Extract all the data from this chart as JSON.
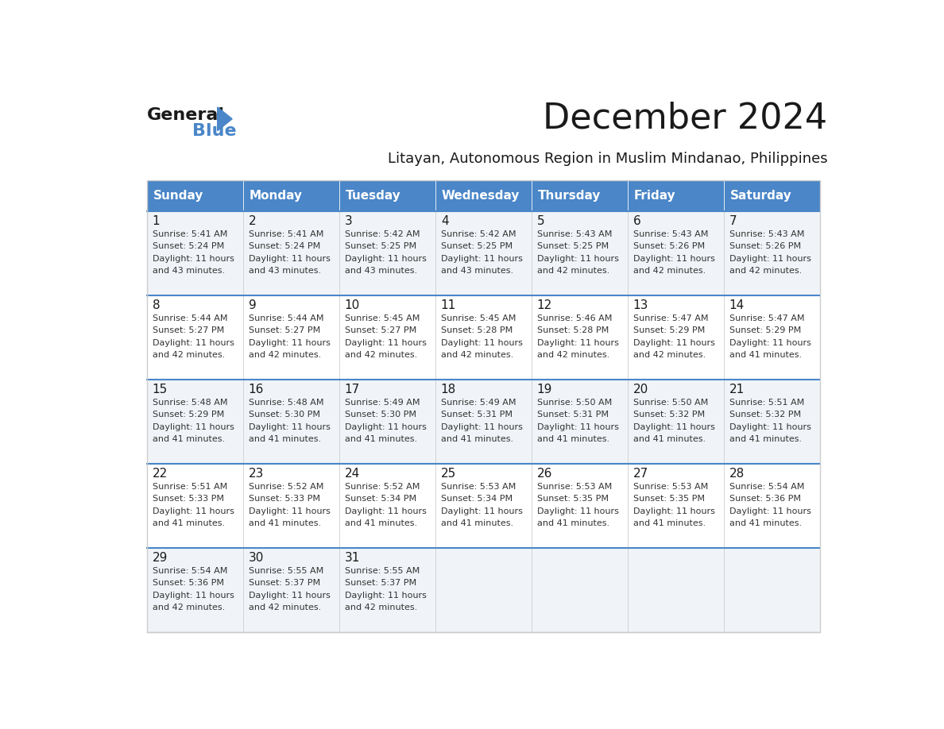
{
  "title": "December 2024",
  "subtitle": "Litayan, Autonomous Region in Muslim Mindanao, Philippines",
  "header_color": "#4a86c8",
  "header_text_color": "#ffffff",
  "cell_bg_color": "#ffffff",
  "alt_cell_bg_color": "#f0f4f8",
  "day_names": [
    "Sunday",
    "Monday",
    "Tuesday",
    "Wednesday",
    "Thursday",
    "Friday",
    "Saturday"
  ],
  "days": [
    {
      "day": 1,
      "col": 0,
      "row": 0,
      "sunrise": "5:41 AM",
      "sunset": "5:24 PM",
      "daylight": "11 hours and 43 minutes."
    },
    {
      "day": 2,
      "col": 1,
      "row": 0,
      "sunrise": "5:41 AM",
      "sunset": "5:24 PM",
      "daylight": "11 hours and 43 minutes."
    },
    {
      "day": 3,
      "col": 2,
      "row": 0,
      "sunrise": "5:42 AM",
      "sunset": "5:25 PM",
      "daylight": "11 hours and 43 minutes."
    },
    {
      "day": 4,
      "col": 3,
      "row": 0,
      "sunrise": "5:42 AM",
      "sunset": "5:25 PM",
      "daylight": "11 hours and 43 minutes."
    },
    {
      "day": 5,
      "col": 4,
      "row": 0,
      "sunrise": "5:43 AM",
      "sunset": "5:25 PM",
      "daylight": "11 hours and 42 minutes."
    },
    {
      "day": 6,
      "col": 5,
      "row": 0,
      "sunrise": "5:43 AM",
      "sunset": "5:26 PM",
      "daylight": "11 hours and 42 minutes."
    },
    {
      "day": 7,
      "col": 6,
      "row": 0,
      "sunrise": "5:43 AM",
      "sunset": "5:26 PM",
      "daylight": "11 hours and 42 minutes."
    },
    {
      "day": 8,
      "col": 0,
      "row": 1,
      "sunrise": "5:44 AM",
      "sunset": "5:27 PM",
      "daylight": "11 hours and 42 minutes."
    },
    {
      "day": 9,
      "col": 1,
      "row": 1,
      "sunrise": "5:44 AM",
      "sunset": "5:27 PM",
      "daylight": "11 hours and 42 minutes."
    },
    {
      "day": 10,
      "col": 2,
      "row": 1,
      "sunrise": "5:45 AM",
      "sunset": "5:27 PM",
      "daylight": "11 hours and 42 minutes."
    },
    {
      "day": 11,
      "col": 3,
      "row": 1,
      "sunrise": "5:45 AM",
      "sunset": "5:28 PM",
      "daylight": "11 hours and 42 minutes."
    },
    {
      "day": 12,
      "col": 4,
      "row": 1,
      "sunrise": "5:46 AM",
      "sunset": "5:28 PM",
      "daylight": "11 hours and 42 minutes."
    },
    {
      "day": 13,
      "col": 5,
      "row": 1,
      "sunrise": "5:47 AM",
      "sunset": "5:29 PM",
      "daylight": "11 hours and 42 minutes."
    },
    {
      "day": 14,
      "col": 6,
      "row": 1,
      "sunrise": "5:47 AM",
      "sunset": "5:29 PM",
      "daylight": "11 hours and 41 minutes."
    },
    {
      "day": 15,
      "col": 0,
      "row": 2,
      "sunrise": "5:48 AM",
      "sunset": "5:29 PM",
      "daylight": "11 hours and 41 minutes."
    },
    {
      "day": 16,
      "col": 1,
      "row": 2,
      "sunrise": "5:48 AM",
      "sunset": "5:30 PM",
      "daylight": "11 hours and 41 minutes."
    },
    {
      "day": 17,
      "col": 2,
      "row": 2,
      "sunrise": "5:49 AM",
      "sunset": "5:30 PM",
      "daylight": "11 hours and 41 minutes."
    },
    {
      "day": 18,
      "col": 3,
      "row": 2,
      "sunrise": "5:49 AM",
      "sunset": "5:31 PM",
      "daylight": "11 hours and 41 minutes."
    },
    {
      "day": 19,
      "col": 4,
      "row": 2,
      "sunrise": "5:50 AM",
      "sunset": "5:31 PM",
      "daylight": "11 hours and 41 minutes."
    },
    {
      "day": 20,
      "col": 5,
      "row": 2,
      "sunrise": "5:50 AM",
      "sunset": "5:32 PM",
      "daylight": "11 hours and 41 minutes."
    },
    {
      "day": 21,
      "col": 6,
      "row": 2,
      "sunrise": "5:51 AM",
      "sunset": "5:32 PM",
      "daylight": "11 hours and 41 minutes."
    },
    {
      "day": 22,
      "col": 0,
      "row": 3,
      "sunrise": "5:51 AM",
      "sunset": "5:33 PM",
      "daylight": "11 hours and 41 minutes."
    },
    {
      "day": 23,
      "col": 1,
      "row": 3,
      "sunrise": "5:52 AM",
      "sunset": "5:33 PM",
      "daylight": "11 hours and 41 minutes."
    },
    {
      "day": 24,
      "col": 2,
      "row": 3,
      "sunrise": "5:52 AM",
      "sunset": "5:34 PM",
      "daylight": "11 hours and 41 minutes."
    },
    {
      "day": 25,
      "col": 3,
      "row": 3,
      "sunrise": "5:53 AM",
      "sunset": "5:34 PM",
      "daylight": "11 hours and 41 minutes."
    },
    {
      "day": 26,
      "col": 4,
      "row": 3,
      "sunrise": "5:53 AM",
      "sunset": "5:35 PM",
      "daylight": "11 hours and 41 minutes."
    },
    {
      "day": 27,
      "col": 5,
      "row": 3,
      "sunrise": "5:53 AM",
      "sunset": "5:35 PM",
      "daylight": "11 hours and 41 minutes."
    },
    {
      "day": 28,
      "col": 6,
      "row": 3,
      "sunrise": "5:54 AM",
      "sunset": "5:36 PM",
      "daylight": "11 hours and 41 minutes."
    },
    {
      "day": 29,
      "col": 0,
      "row": 4,
      "sunrise": "5:54 AM",
      "sunset": "5:36 PM",
      "daylight": "11 hours and 42 minutes."
    },
    {
      "day": 30,
      "col": 1,
      "row": 4,
      "sunrise": "5:55 AM",
      "sunset": "5:37 PM",
      "daylight": "11 hours and 42 minutes."
    },
    {
      "day": 31,
      "col": 2,
      "row": 4,
      "sunrise": "5:55 AM",
      "sunset": "5:37 PM",
      "daylight": "11 hours and 42 minutes."
    }
  ],
  "num_rows": 5,
  "num_cols": 7,
  "logo_text1": "General",
  "logo_text2": "Blue",
  "logo_triangle_color": "#4a86c8",
  "logo_text1_color": "#1a1a1a",
  "logo_text2_color": "#4a86c8"
}
